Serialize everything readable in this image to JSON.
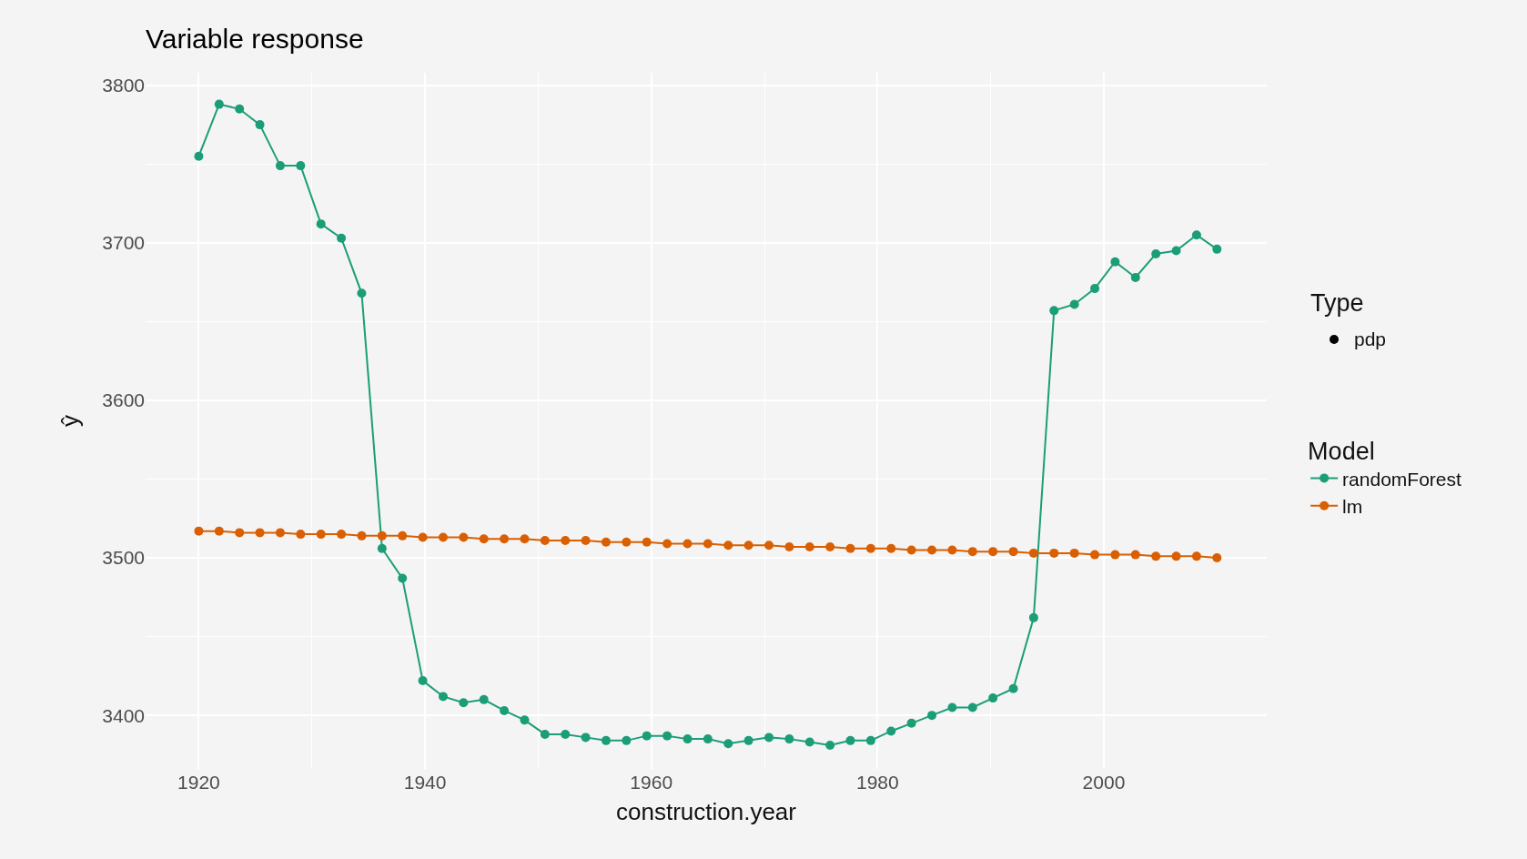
{
  "chart_data": {
    "type": "line",
    "title": "Variable response",
    "xlabel": "construction.year",
    "ylabel": "ŷ",
    "legend_title": "Model",
    "annotations": [
      "Type",
      "pdp"
    ],
    "x": [
      1920,
      1921.8,
      1923.6,
      1925.4,
      1927.2,
      1929,
      1930.8,
      1932.6,
      1934.4,
      1936.2,
      1938,
      1939.8,
      1941.6,
      1943.4,
      1945.2,
      1947,
      1948.8,
      1950.6,
      1952.4,
      1954.2,
      1956,
      1957.8,
      1959.6,
      1961.4,
      1963.2,
      1965,
      1966.8,
      1968.6,
      1970.4,
      1972.2,
      1974,
      1975.8,
      1977.6,
      1979.4,
      1981.2,
      1983,
      1984.8,
      1986.6,
      1988.4,
      1990.2,
      1992,
      1993.8,
      1995.6,
      1997.4,
      1999.2,
      2001,
      2002.8,
      2004.6,
      2006.4,
      2008.2,
      2010
    ],
    "series": [
      {
        "name": "randomForest",
        "color": "#1b9e77",
        "values": [
          3755,
          3788,
          3785,
          3775,
          3749,
          3749,
          3712,
          3703,
          3668,
          3506,
          3487,
          3422,
          3412,
          3408,
          3410,
          3403,
          3397,
          3388,
          3388,
          3386,
          3384,
          3384,
          3387,
          3387,
          3385,
          3385,
          3382,
          3384,
          3386,
          3385,
          3383,
          3381,
          3384,
          3384,
          3390,
          3395,
          3400,
          3405,
          3405,
          3411,
          3417,
          3462,
          3657,
          3661,
          3671,
          3688,
          3678,
          3693,
          3695,
          3705,
          3696
        ]
      },
      {
        "name": "lm",
        "color": "#d95f02",
        "values": [
          3517,
          3517,
          3516,
          3516,
          3516,
          3515,
          3515,
          3515,
          3514,
          3514,
          3514,
          3513,
          3513,
          3513,
          3512,
          3512,
          3512,
          3511,
          3511,
          3511,
          3510,
          3510,
          3510,
          3509,
          3509,
          3509,
          3508,
          3508,
          3508,
          3507,
          3507,
          3507,
          3506,
          3506,
          3506,
          3505,
          3505,
          3505,
          3504,
          3504,
          3504,
          3503,
          3503,
          3503,
          3502,
          3502,
          3502,
          3501,
          3501,
          3501,
          3500
        ]
      }
    ],
    "xlim": [
      1915.3,
      2014.4
    ],
    "ylim": [
      3366,
      3808
    ],
    "xticks": [
      1920,
      1940,
      1960,
      1980,
      2000
    ],
    "yticks": [
      3400,
      3500,
      3600,
      3700,
      3800
    ],
    "grid": true,
    "legend": "right",
    "marker": "circle"
  }
}
